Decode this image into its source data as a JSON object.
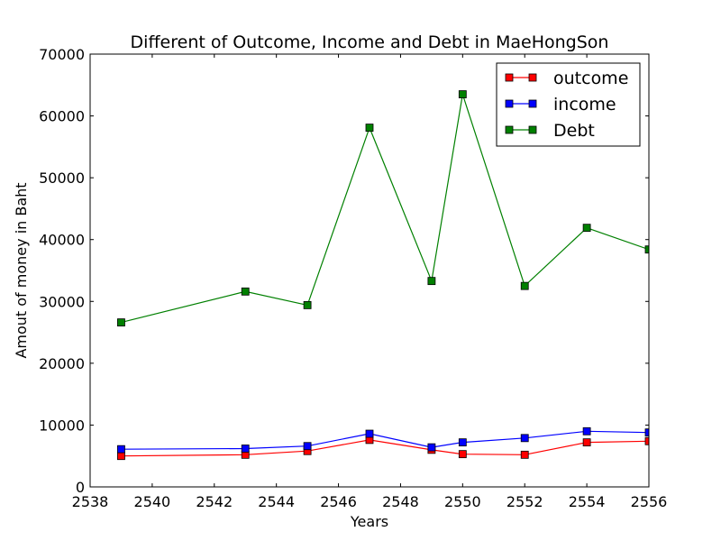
{
  "chart_data": {
    "type": "line",
    "title": "Different of Outcome, Income and Debt in MaeHongSon",
    "xlabel": "Years",
    "ylabel": "Amout of money in Baht",
    "xlim": [
      2538,
      2556
    ],
    "ylim": [
      0,
      70000
    ],
    "xticks": [
      2538,
      2540,
      2542,
      2544,
      2546,
      2548,
      2550,
      2552,
      2554,
      2556
    ],
    "yticks": [
      0,
      10000,
      20000,
      30000,
      40000,
      50000,
      60000,
      70000
    ],
    "grid": false,
    "legend": "top-right",
    "x": [
      2539,
      2543,
      2545,
      2547,
      2549,
      2550,
      2552,
      2554,
      2556
    ],
    "series": [
      {
        "name": "outcome",
        "color": "#ff0000",
        "marker": "square",
        "values": [
          5000,
          5200,
          5800,
          7600,
          6000,
          5300,
          5200,
          7200,
          7400
        ]
      },
      {
        "name": "income",
        "color": "#0000ff",
        "marker": "square",
        "values": [
          6100,
          6200,
          6600,
          8600,
          6400,
          7200,
          7900,
          9000,
          8800
        ]
      },
      {
        "name": "Debt",
        "color": "#008000",
        "marker": "square",
        "values": [
          26600,
          31600,
          29400,
          58100,
          33300,
          63500,
          32500,
          41900,
          38400
        ]
      }
    ]
  }
}
